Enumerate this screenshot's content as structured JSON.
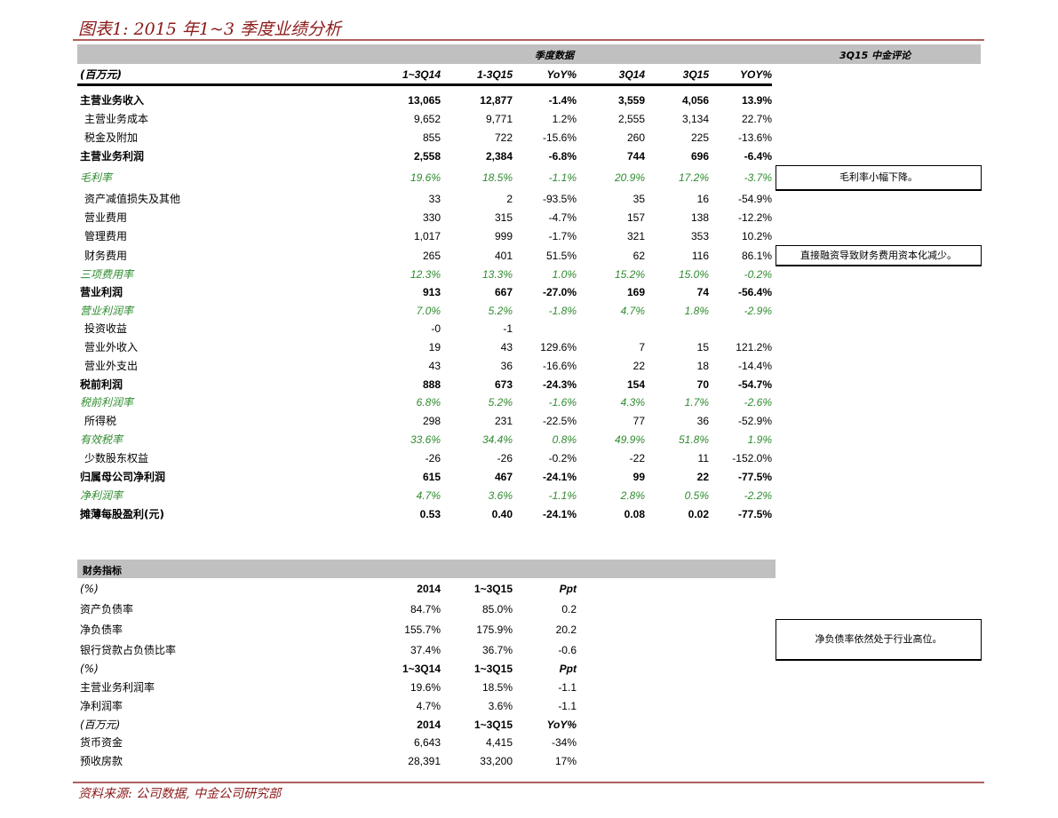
{
  "title": "图表1: 2015 年1~3 季度业绩分析",
  "header": {
    "group": "季度数据",
    "comment": "3Q15 中金评论"
  },
  "sub_header": {
    "unit": "(百万元)",
    "cols": [
      "1~3Q14",
      "1-3Q15",
      "YoY%",
      "3Q14",
      "3Q15",
      "YOY%"
    ]
  },
  "rows": [
    {
      "label": "主营业务收入",
      "style": "bold",
      "v": [
        "13,065",
        "12,877",
        "-1.4%",
        "3,559",
        "4,056",
        "13.9%"
      ]
    },
    {
      "label": "主营业务成本",
      "style": "ind",
      "v": [
        "9,652",
        "9,771",
        "1.2%",
        "2,555",
        "3,134",
        "22.7%"
      ]
    },
    {
      "label": "税金及附加",
      "style": "ind",
      "v": [
        "855",
        "722",
        "-15.6%",
        "260",
        "225",
        "-13.6%"
      ]
    },
    {
      "label": "主营业务利润",
      "style": "bold",
      "v": [
        "2,558",
        "2,384",
        "-6.8%",
        "744",
        "696",
        "-6.4%"
      ]
    },
    {
      "label": "毛利率",
      "style": "green",
      "v": [
        "19.6%",
        "18.5%",
        "-1.1%",
        "20.9%",
        "17.2%",
        "-3.7%"
      ]
    },
    {
      "label": "资产减值损失及其他",
      "style": "ind",
      "v": [
        "33",
        "2",
        "-93.5%",
        "35",
        "16",
        "-54.9%"
      ]
    },
    {
      "label": "营业费用",
      "style": "ind",
      "v": [
        "330",
        "315",
        "-4.7%",
        "157",
        "138",
        "-12.2%"
      ]
    },
    {
      "label": "管理费用",
      "style": "ind",
      "v": [
        "1,017",
        "999",
        "-1.7%",
        "321",
        "353",
        "10.2%"
      ]
    },
    {
      "label": "财务费用",
      "style": "ind",
      "v": [
        "265",
        "401",
        "51.5%",
        "62",
        "116",
        "86.1%"
      ]
    },
    {
      "label": "三项费用率",
      "style": "green",
      "v": [
        "12.3%",
        "13.3%",
        "1.0%",
        "15.2%",
        "15.0%",
        "-0.2%"
      ]
    },
    {
      "label": "营业利润",
      "style": "bold",
      "v": [
        "913",
        "667",
        "-27.0%",
        "169",
        "74",
        "-56.4%"
      ]
    },
    {
      "label": "营业利润率",
      "style": "green",
      "v": [
        "7.0%",
        "5.2%",
        "-1.8%",
        "4.7%",
        "1.8%",
        "-2.9%"
      ]
    },
    {
      "label": "投资收益",
      "style": "ind",
      "v": [
        "-0",
        "-1",
        "",
        "",
        "",
        ""
      ]
    },
    {
      "label": "营业外收入",
      "style": "ind",
      "v": [
        "19",
        "43",
        "129.6%",
        "7",
        "15",
        "121.2%"
      ]
    },
    {
      "label": "营业外支出",
      "style": "ind",
      "v": [
        "43",
        "36",
        "-16.6%",
        "22",
        "18",
        "-14.4%"
      ]
    },
    {
      "label": "税前利润",
      "style": "bold",
      "v": [
        "888",
        "673",
        "-24.3%",
        "154",
        "70",
        "-54.7%"
      ]
    },
    {
      "label": "税前利润率",
      "style": "green",
      "v": [
        "6.8%",
        "5.2%",
        "-1.6%",
        "4.3%",
        "1.7%",
        "-2.6%"
      ]
    },
    {
      "label": "所得税",
      "style": "ind",
      "v": [
        "298",
        "231",
        "-22.5%",
        "77",
        "36",
        "-52.9%"
      ]
    },
    {
      "label": "有效税率",
      "style": "green",
      "v": [
        "33.6%",
        "34.4%",
        "0.8%",
        "49.9%",
        "51.8%",
        "1.9%"
      ]
    },
    {
      "label": "少数股东权益",
      "style": "ind",
      "v": [
        "-26",
        "-26",
        "-0.2%",
        "-22",
        "11",
        "-152.0%"
      ]
    },
    {
      "label": "归属母公司净利润",
      "style": "bold",
      "v": [
        "615",
        "467",
        "-24.1%",
        "99",
        "22",
        "-77.5%"
      ]
    },
    {
      "label": "净利润率",
      "style": "green",
      "v": [
        "4.7%",
        "3.6%",
        "-1.1%",
        "2.8%",
        "0.5%",
        "-2.2%"
      ]
    },
    {
      "label": "摊薄每股盈利(元)",
      "style": "bold",
      "v": [
        "0.53",
        "0.40",
        "-24.1%",
        "0.08",
        "0.02",
        "-77.5%"
      ]
    }
  ],
  "comments": [
    "毛利率小幅下降。",
    "直接融资导致财务费用资本化减少。",
    "净负债率依然处于行业高位。"
  ],
  "fin_header": "财务指标",
  "fin_rows": [
    {
      "label": "(%)",
      "style": "head",
      "v": [
        "2014",
        "1~3Q15",
        "Ppt"
      ]
    },
    {
      "label": "资产负债率",
      "style": "",
      "v": [
        "84.7%",
        "85.0%",
        "0.2"
      ]
    },
    {
      "label": "净负债率",
      "style": "",
      "v": [
        "155.7%",
        "175.9%",
        "20.2"
      ]
    },
    {
      "label": "银行贷款占负债比率",
      "style": "",
      "v": [
        "37.4%",
        "36.7%",
        "-0.6"
      ]
    },
    {
      "label": "(%)",
      "style": "head",
      "v": [
        "1~3Q14",
        "1~3Q15",
        "Ppt"
      ]
    },
    {
      "label": "主营业务利润率",
      "style": "",
      "v": [
        "19.6%",
        "18.5%",
        "-1.1"
      ]
    },
    {
      "label": "净利润率",
      "style": "",
      "v": [
        "4.7%",
        "3.6%",
        "-1.1"
      ]
    },
    {
      "label": "(百万元)",
      "style": "head",
      "v": [
        "2014",
        "1~3Q15",
        "YoY%"
      ]
    },
    {
      "label": "货币资金",
      "style": "",
      "v": [
        "6,643",
        "4,415",
        "-34%"
      ]
    },
    {
      "label": "预收房款",
      "style": "",
      "v": [
        "28,391",
        "33,200",
        "17%"
      ]
    }
  ],
  "source": "资料来源: 公司数据, 中金公司研究部",
  "colors": {
    "accent": "#8b1a1a",
    "green": "#2e8b2e",
    "header_gray": "#c0c0c0"
  }
}
